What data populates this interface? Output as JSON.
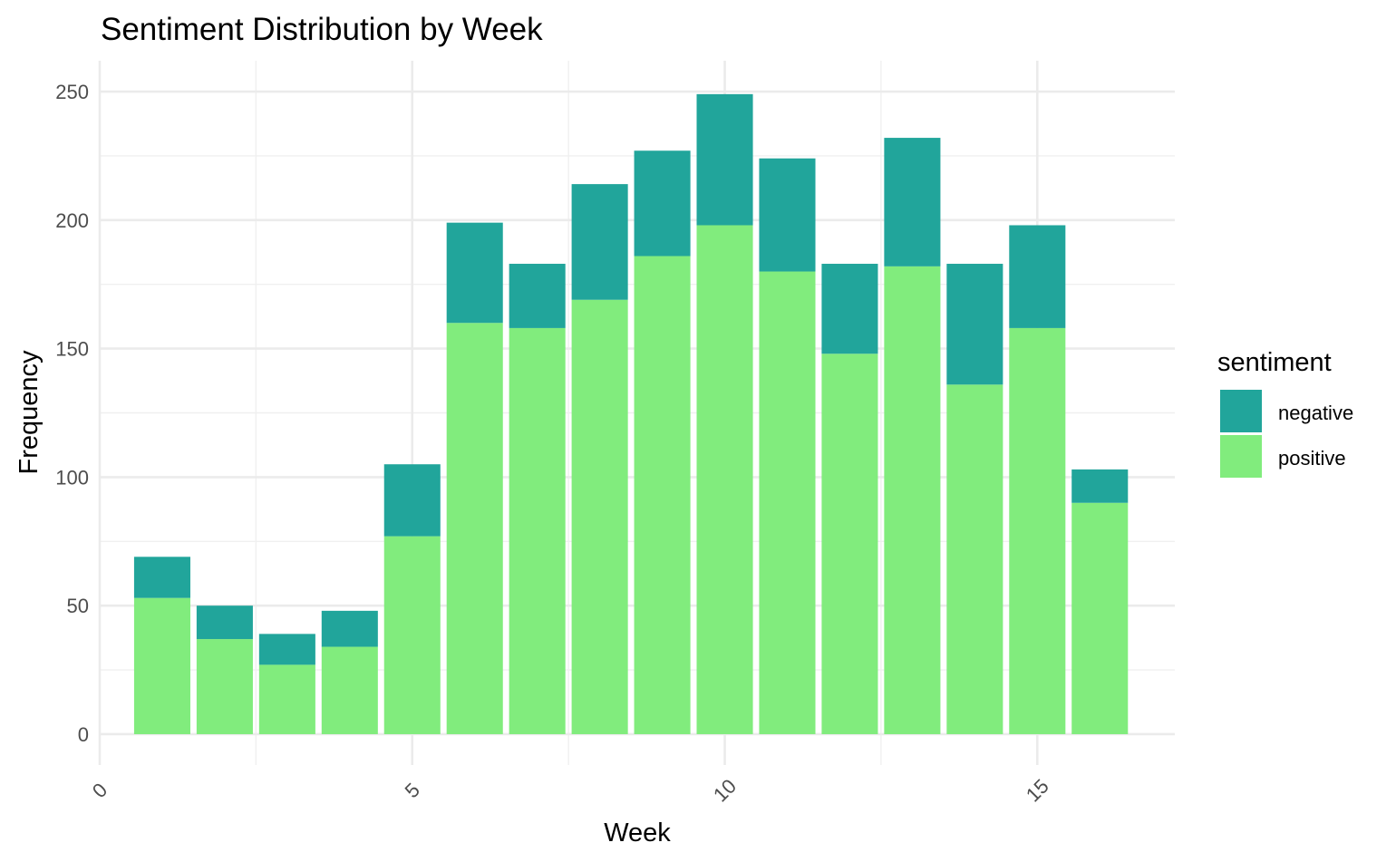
{
  "chart_data": {
    "type": "bar",
    "stacked": true,
    "title": "Sentiment Distribution by Week",
    "xlabel": "Week",
    "ylabel": "Frequency",
    "x": [
      1,
      2,
      3,
      4,
      5,
      6,
      7,
      8,
      9,
      10,
      11,
      12,
      13,
      14,
      15,
      16
    ],
    "xlim": [
      0,
      17.2
    ],
    "ylim": [
      -12,
      262
    ],
    "x_ticks": [
      0,
      5,
      10,
      15
    ],
    "y_ticks": [
      0,
      50,
      100,
      150,
      200,
      250
    ],
    "grid": true,
    "legend": {
      "title": "sentiment",
      "position": "right"
    },
    "series": [
      {
        "name": "positive",
        "color": "#81EC7D",
        "values": [
          53,
          37,
          27,
          34,
          77,
          160,
          158,
          169,
          186,
          198,
          180,
          148,
          182,
          136,
          158,
          90
        ]
      },
      {
        "name": "negative",
        "color": "#21A59B",
        "values": [
          16,
          13,
          12,
          14,
          28,
          39,
          25,
          45,
          41,
          51,
          44,
          35,
          50,
          47,
          40,
          13
        ]
      }
    ],
    "legend_order": [
      "negative",
      "positive"
    ]
  }
}
